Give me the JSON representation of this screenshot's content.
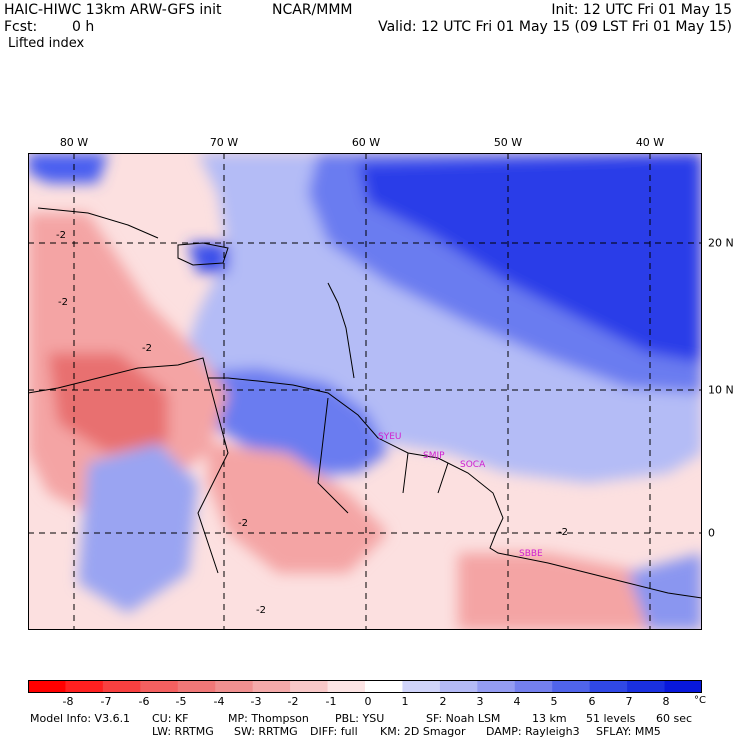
{
  "header": {
    "model": "HAIC-HIWC 13km ARW-GFS init",
    "center": "NCAR/MMM",
    "fcst_label": "Fcst:",
    "fcst_value": "0 h",
    "field": "Lifted index",
    "init": "Init: 12 UTC Fri 01 May 15",
    "valid": "Valid: 12 UTC Fri 01 May 15 (09 LST Fri 01 May 15)"
  },
  "map": {
    "longitudes": [
      "80 W",
      "70 W",
      "60 W",
      "50 W",
      "40 W"
    ],
    "latitudes": [
      "20 N",
      "10 N",
      "0"
    ],
    "contour_label": "-2",
    "stations": [
      "SYEU",
      "SMJP",
      "SOCA",
      "SBBE"
    ],
    "colors": {
      "deep_blue": "#1010e0",
      "mid_blue": "#5a6cf0",
      "light_blue": "#b4bcf6",
      "pale_pink": "#fce0e0",
      "salmon": "#f4a4a4",
      "red": "#e86060",
      "station": "#d020d0"
    }
  },
  "colorbar": {
    "ticks": [
      "-8",
      "-7",
      "-6",
      "-5",
      "-4",
      "-3",
      "-2",
      "-1",
      "0",
      "1",
      "2",
      "3",
      "4",
      "5",
      "6",
      "7",
      "8"
    ],
    "unit": "°C",
    "colors": [
      "#ff0000",
      "#ff2020",
      "#f84040",
      "#f46060",
      "#f07878",
      "#f09090",
      "#f4aaaa",
      "#f8c8c8",
      "#fce4e4",
      "#ffffff",
      "#d0d4fa",
      "#b4baf6",
      "#949cf2",
      "#7480ee",
      "#5064ea",
      "#3048e6",
      "#1a30e0",
      "#0818dc"
    ]
  },
  "model_info": {
    "line1": [
      "Model Info: V3.6.1",
      "CU: KF",
      "MP: Thompson",
      "PBL: YSU",
      "SF: Noah LSM",
      "13 km",
      "51 levels",
      "60 sec"
    ],
    "line2": [
      "LW: RRTMG",
      "SW: RRTMG",
      "DIFF: full",
      "KM: 2D Smagor",
      "DAMP: Rayleigh3",
      "SFLAY: MM5"
    ]
  }
}
